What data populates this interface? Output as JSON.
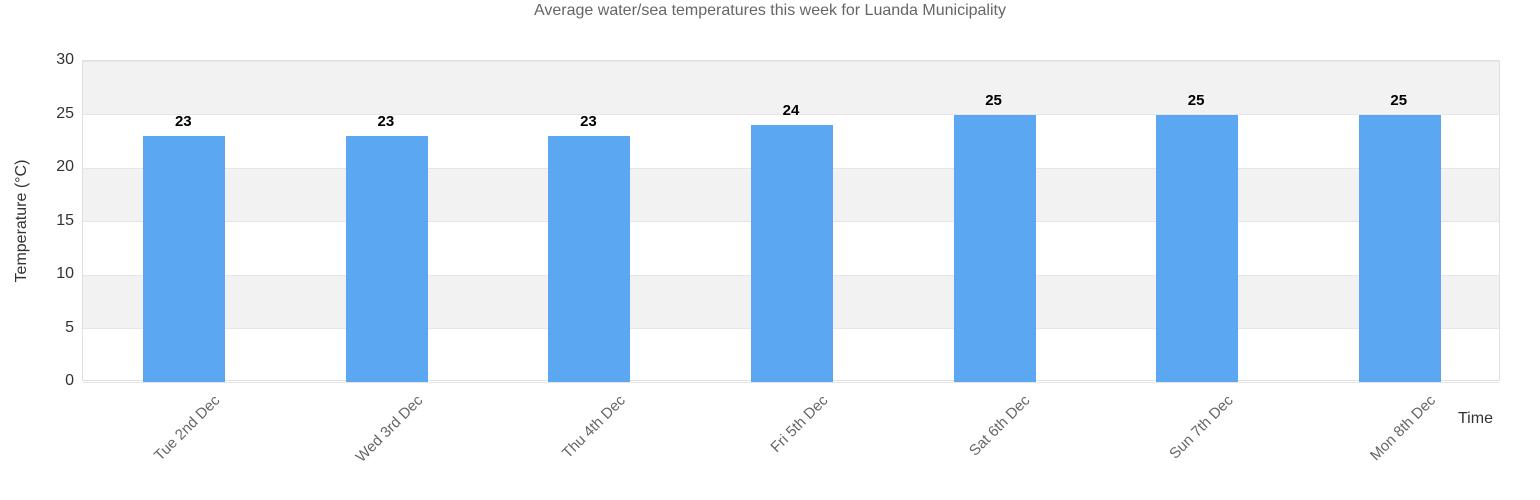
{
  "title": "Average water/sea temperatures this week for Luanda Municipality",
  "y_axis": {
    "title": "Temperature (°C)",
    "ticks": [
      0,
      5,
      10,
      15,
      20,
      25,
      30
    ]
  },
  "x_axis": {
    "title": "Time"
  },
  "chart_data": {
    "type": "bar",
    "categories": [
      "Tue 2nd Dec",
      "Wed 3rd Dec",
      "Thu 4th Dec",
      "Fri 5th Dec",
      "Sat 6th Dec",
      "Sun 7th Dec",
      "Mon 8th Dec"
    ],
    "values": [
      23,
      23,
      23,
      24,
      25,
      25,
      25
    ],
    "title": "Average water/sea temperatures this week for Luanda Municipality",
    "xlabel": "Time",
    "ylabel": "Temperature (°C)",
    "ylim": [
      0,
      30
    ],
    "tick_interval": 5,
    "grid": true,
    "legend_position": "none",
    "data_labels": true
  },
  "colors": {
    "bar": "#5ca7f1",
    "band": "#f2f2f2",
    "gridline": "#e6e6e6",
    "plot_border": "#e0e0e0",
    "title_text": "#666666",
    "tick_text": "#333333",
    "x_label_text": "#666666",
    "value_label_text": "#000000"
  }
}
